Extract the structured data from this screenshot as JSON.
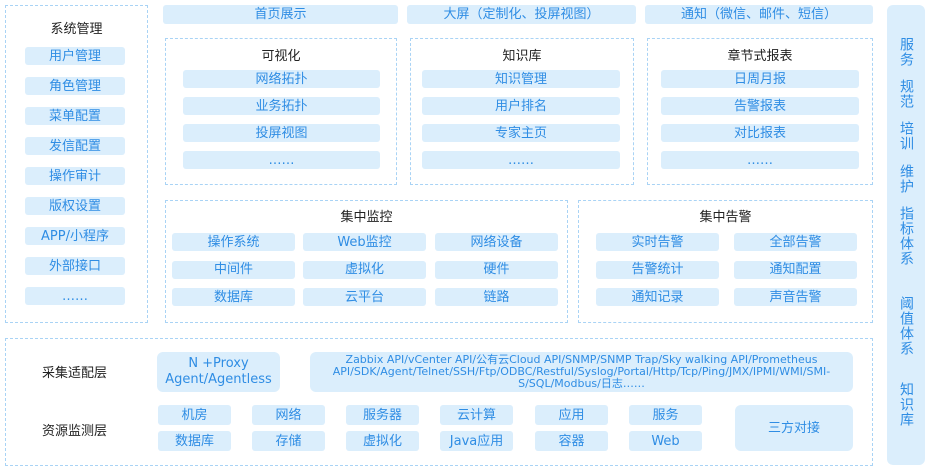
{
  "top_bar": [
    "首页展示",
    "大屏（定制化、投屏视图）",
    "通知（微信、邮件、短信）"
  ],
  "system_management": {
    "title": "系统管理",
    "items": [
      "用户管理",
      "角色管理",
      "菜单配置",
      "发信配置",
      "操作审计",
      "版权设置",
      "APP/小程序",
      "外部接口",
      "……"
    ]
  },
  "visualization": {
    "title": "可视化",
    "items": [
      "网络拓扑",
      "业务拓扑",
      "投屏视图",
      "……"
    ]
  },
  "knowledge_base": {
    "title": "知识库",
    "items": [
      "知识管理",
      "用户排名",
      "专家主页",
      "……"
    ]
  },
  "chapter_reports": {
    "title": "章节式报表",
    "items": [
      "日周月报",
      "告警报表",
      "对比报表",
      "……"
    ]
  },
  "central_monitoring": {
    "title": "集中监控",
    "items": [
      "操作系统",
      "Web监控",
      "网络设备",
      "中间件",
      "虚拟化",
      "硬件",
      "数据库",
      "云平台",
      "链路"
    ]
  },
  "central_alerts": {
    "title": "集中告警",
    "items": [
      "实时告警",
      "全部告警",
      "告警统计",
      "通知配置",
      "通知记录",
      "声音告警"
    ]
  },
  "collection_layer": {
    "label": "采集适配层",
    "proxy": "N +Proxy Agent/Agentless",
    "protocols": "Zabbix API/vCenter API/公有云Cloud API/SNMP/SNMP Trap/Sky walking API/Prometheus API/SDK/Agent/Telnet/SSH/Ftp/ODBC/Restful/Syslog/Portal/Http/Tcp/Ping/JMX/IPMI/WMI/SMI-S/SQL/Modbus/日志……"
  },
  "resource_layer": {
    "label": "资源监测层",
    "items": [
      "机房",
      "网络",
      "服务器",
      "云计算",
      "应用",
      "服务",
      "数据库",
      "存储",
      "虚拟化",
      "Java应用",
      "容器",
      "Web"
    ],
    "third_party": "三方对接"
  },
  "side_column": [
    "服务",
    "规范",
    "培训",
    "维护",
    "指标体系",
    "阈值体系",
    "知识库"
  ]
}
